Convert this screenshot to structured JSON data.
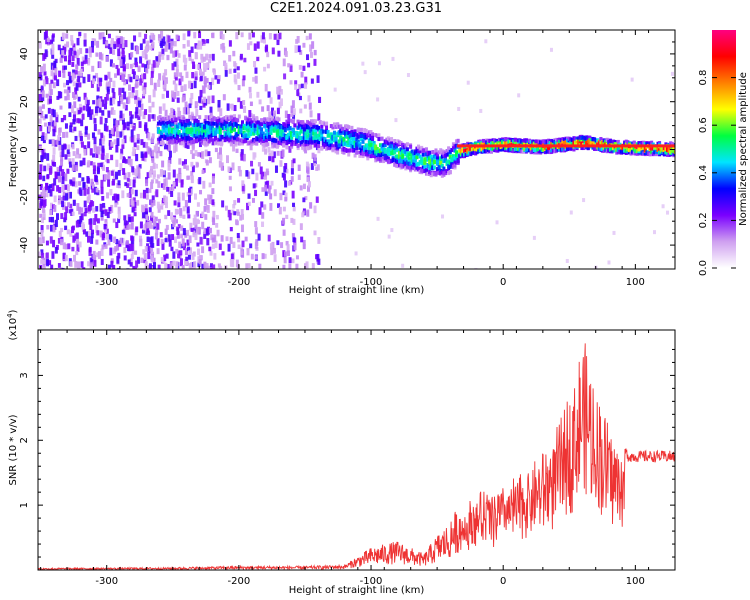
{
  "chart_data": [
    {
      "type": "heatmap",
      "title": "C2E1.2024.091.03.23.G31",
      "xlabel": "Height of straight line (km)",
      "ylabel": "Frequency (Hz)",
      "xlim": [
        -352,
        130
      ],
      "ylim": [
        -50,
        50
      ],
      "x_ticks": [
        -300,
        -200,
        -100,
        0,
        100
      ],
      "y_ticks": [
        -40,
        -20,
        0,
        20,
        40
      ],
      "colorbar": {
        "label": "Normalized spectral amplitude",
        "range": [
          0,
          1
        ],
        "ticks": [
          "0.0",
          "0.2",
          "0.4",
          "0.6",
          "0.8"
        ],
        "colors": [
          "#ffffff",
          "#cfa0f0",
          "#7a00ff",
          "#0000ff",
          "#00e5ff",
          "#00ff40",
          "#ffff00",
          "#ff8000",
          "#ff0000",
          "#ff0080"
        ]
      },
      "ridge": [
        {
          "x": -255,
          "y": 8
        },
        {
          "x": -230,
          "y": 8
        },
        {
          "x": -200,
          "y": 8
        },
        {
          "x": -170,
          "y": 7
        },
        {
          "x": -140,
          "y": 6
        },
        {
          "x": -110,
          "y": 3
        },
        {
          "x": -80,
          "y": -2
        },
        {
          "x": -60,
          "y": -5
        },
        {
          "x": -45,
          "y": -6
        },
        {
          "x": -35,
          "y": -1
        },
        {
          "x": -20,
          "y": 1
        },
        {
          "x": 0,
          "y": 2
        },
        {
          "x": 30,
          "y": 1
        },
        {
          "x": 60,
          "y": 3
        },
        {
          "x": 85,
          "y": 1
        },
        {
          "x": 130,
          "y": 0
        }
      ]
    },
    {
      "type": "line",
      "xlabel": "Height of straight line (km)",
      "ylabel": "SNR (10 * v/v)",
      "y_multiplier": "(x10",
      "y_multiplier_exp": "4",
      "xlim": [
        -352,
        130
      ],
      "ylim": [
        0,
        3.7
      ],
      "x_ticks": [
        -300,
        -200,
        -100,
        0,
        100
      ],
      "y_ticks": [
        1,
        2,
        3
      ],
      "color": "#ee3333",
      "envelope": [
        {
          "x": -352,
          "y": 0.03
        },
        {
          "x": -250,
          "y": 0.04
        },
        {
          "x": -200,
          "y": 0.06
        },
        {
          "x": -150,
          "y": 0.06
        },
        {
          "x": -120,
          "y": 0.08
        },
        {
          "x": -100,
          "y": 0.35
        },
        {
          "x": -80,
          "y": 0.45
        },
        {
          "x": -60,
          "y": 0.25
        },
        {
          "x": -50,
          "y": 0.55
        },
        {
          "x": -35,
          "y": 0.85
        },
        {
          "x": -20,
          "y": 1.15
        },
        {
          "x": 0,
          "y": 1.25
        },
        {
          "x": 20,
          "y": 1.55
        },
        {
          "x": 40,
          "y": 2.1
        },
        {
          "x": 55,
          "y": 3.0
        },
        {
          "x": 60,
          "y": 3.6
        },
        {
          "x": 70,
          "y": 2.8
        },
        {
          "x": 85,
          "y": 2.0
        },
        {
          "x": 95,
          "y": 1.75
        },
        {
          "x": 130,
          "y": 1.75
        }
      ]
    }
  ]
}
